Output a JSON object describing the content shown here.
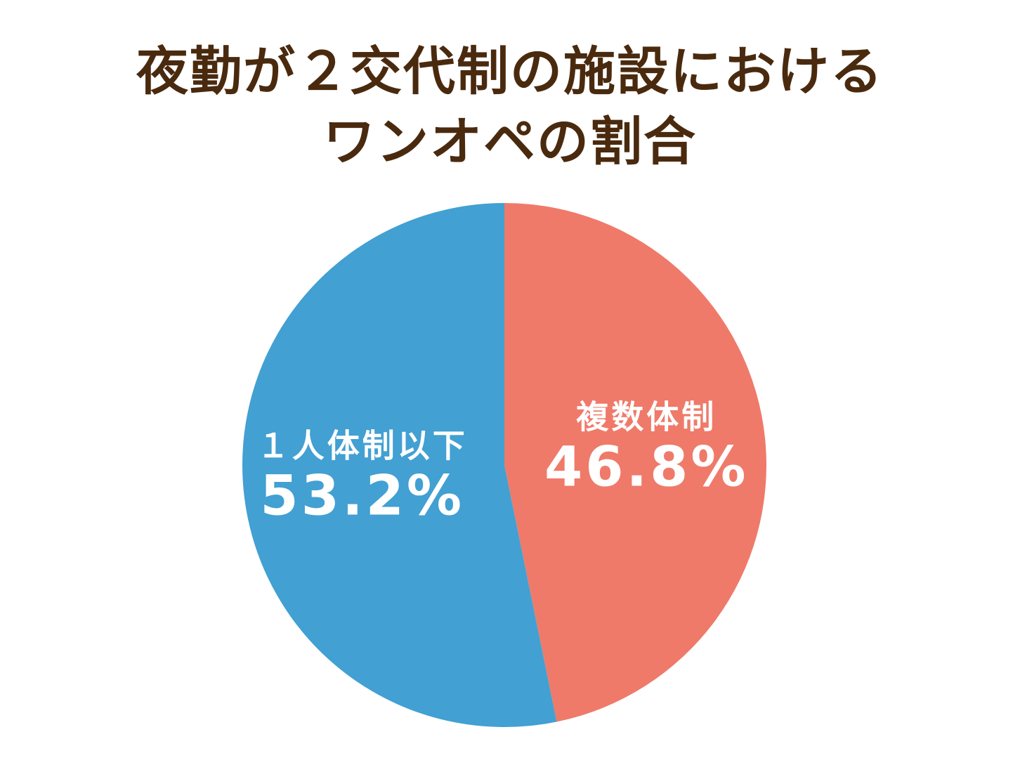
{
  "chart_data": {
    "type": "pie",
    "title_lines": [
      "夜勤が２交代制の施設における",
      "ワンオペの割合"
    ],
    "slices": [
      {
        "label": "複数体制",
        "value": 46.8,
        "value_label": "46.8%",
        "color": "#ef7a6a"
      },
      {
        "label": "１人体制以下",
        "value": 53.2,
        "value_label": "53.2%",
        "color": "#42a0d2"
      }
    ],
    "start": "top",
    "direction": "clockwise",
    "legend": "none"
  }
}
